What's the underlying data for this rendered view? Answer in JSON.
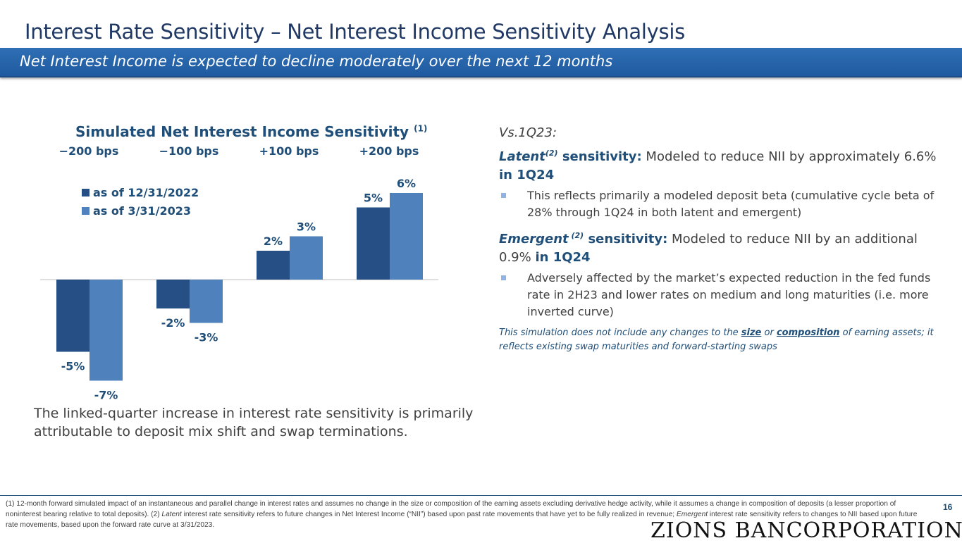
{
  "header": {
    "title": "Interest Rate Sensitivity – Net Interest Income Sensitivity Analysis",
    "banner": "Net Interest Income is expected to decline moderately over the next 12 months"
  },
  "chart_data": {
    "type": "bar",
    "title": "Simulated Net Interest Income Sensitivity",
    "title_note": "(1)",
    "categories": [
      "−200 bps",
      "−100 bps",
      "+100 bps",
      "+200 bps"
    ],
    "series": [
      {
        "name": "as of 12/31/2022",
        "values": [
          -5,
          -2,
          2,
          5
        ],
        "labels": [
          "-5%",
          "-2%",
          "2%",
          "5%"
        ],
        "color": "#264f85"
      },
      {
        "name": "as of 3/31/2023",
        "values": [
          -7,
          -3,
          3,
          6
        ],
        "labels": [
          "-7%",
          "-3%",
          "3%",
          "6%"
        ],
        "color": "#4f81bd"
      }
    ],
    "legend": "top-left",
    "grid": false
  },
  "chart_caption": "The linked-quarter increase in interest rate sensitivity is primarily attributable to deposit mix shift and swap terminations.",
  "commentary": {
    "vs": "Vs.1Q23:",
    "latent": {
      "term": "Latent",
      "sup": "(2)",
      "label": " sensitivity:",
      "text": " Modeled to reduce NII by approximately 6.6% ",
      "period": "in 1Q24",
      "bullet": "This reflects primarily a modeled deposit beta (cumulative cycle beta of 28% through 1Q24 in both latent and emergent)"
    },
    "emergent": {
      "term": "Emergent",
      "sup": " (2)",
      "label": " sensitivity:",
      "text": " Modeled to reduce NII by an additional 0.9% ",
      "period": "in 1Q24",
      "bullet": "Adversely affected by the market’s expected reduction in the fed funds rate in 2H23 and lower rates on medium and long maturities (i.e. more inverted curve)"
    },
    "note": {
      "a": "This simulation does not include any changes to the ",
      "b": "size",
      "c": " or ",
      "d": "composition",
      "e": " of earning assets; it reflects existing swap maturities and forward-starting swaps"
    }
  },
  "footer": {
    "fn1": "(1) 12-month forward simulated impact of an instantaneous and parallel change in interest rates and assumes no change in the size or composition of the earning assets excluding derivative hedge activity, while it assumes a change in composition of deposits (a lesser proportion of noninterest bearing relative to total deposits). (2) ",
    "fn2": "Latent",
    "fn3": " interest rate sensitivity refers to future changes in Net Interest Income (“NII”) based upon past rate movements that have yet to be fully realized in revenue; ",
    "fn4": "Emergent",
    "fn5": " interest rate sensitivity refers to changes to NII based upon future rate movements, based upon the forward rate curve at 3/31/2023.",
    "page": "16",
    "logo": "ZIONS BANCORPORATION"
  }
}
